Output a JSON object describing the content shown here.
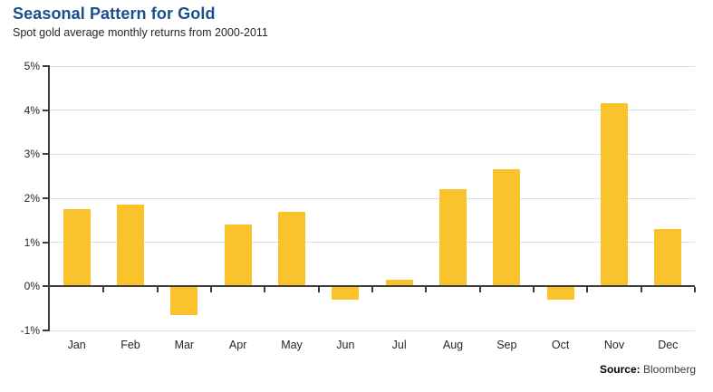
{
  "header": {
    "title": "Seasonal Pattern for Gold",
    "subtitle": "Spot gold average monthly returns from 2000-2011"
  },
  "source": {
    "label": "Source:",
    "value": "Bloomberg"
  },
  "chart_data": {
    "type": "bar",
    "title": "Seasonal Pattern for Gold",
    "subtitle": "Spot gold average monthly returns from 2000-2011",
    "categories": [
      "Jan",
      "Feb",
      "Mar",
      "Apr",
      "May",
      "Jun",
      "Jul",
      "Aug",
      "Sep",
      "Oct",
      "Nov",
      "Dec"
    ],
    "values": [
      1.75,
      1.85,
      -0.65,
      1.4,
      1.7,
      -0.3,
      0.15,
      2.2,
      2.65,
      -0.3,
      4.15,
      1.3
    ],
    "xlabel": "",
    "ylabel": "",
    "ylim": [
      -1,
      5
    ],
    "yticks": [
      5,
      4,
      3,
      2,
      1,
      0,
      -1
    ],
    "ytick_suffix": "%",
    "grid": true,
    "legend": false,
    "colors": {
      "bar": "#FBC32B",
      "grid": "#CDE4EB",
      "axis": "#3D3D3D",
      "title": "#1B4E8C",
      "text": "#262626",
      "source_text": "#3A3A3A"
    }
  }
}
